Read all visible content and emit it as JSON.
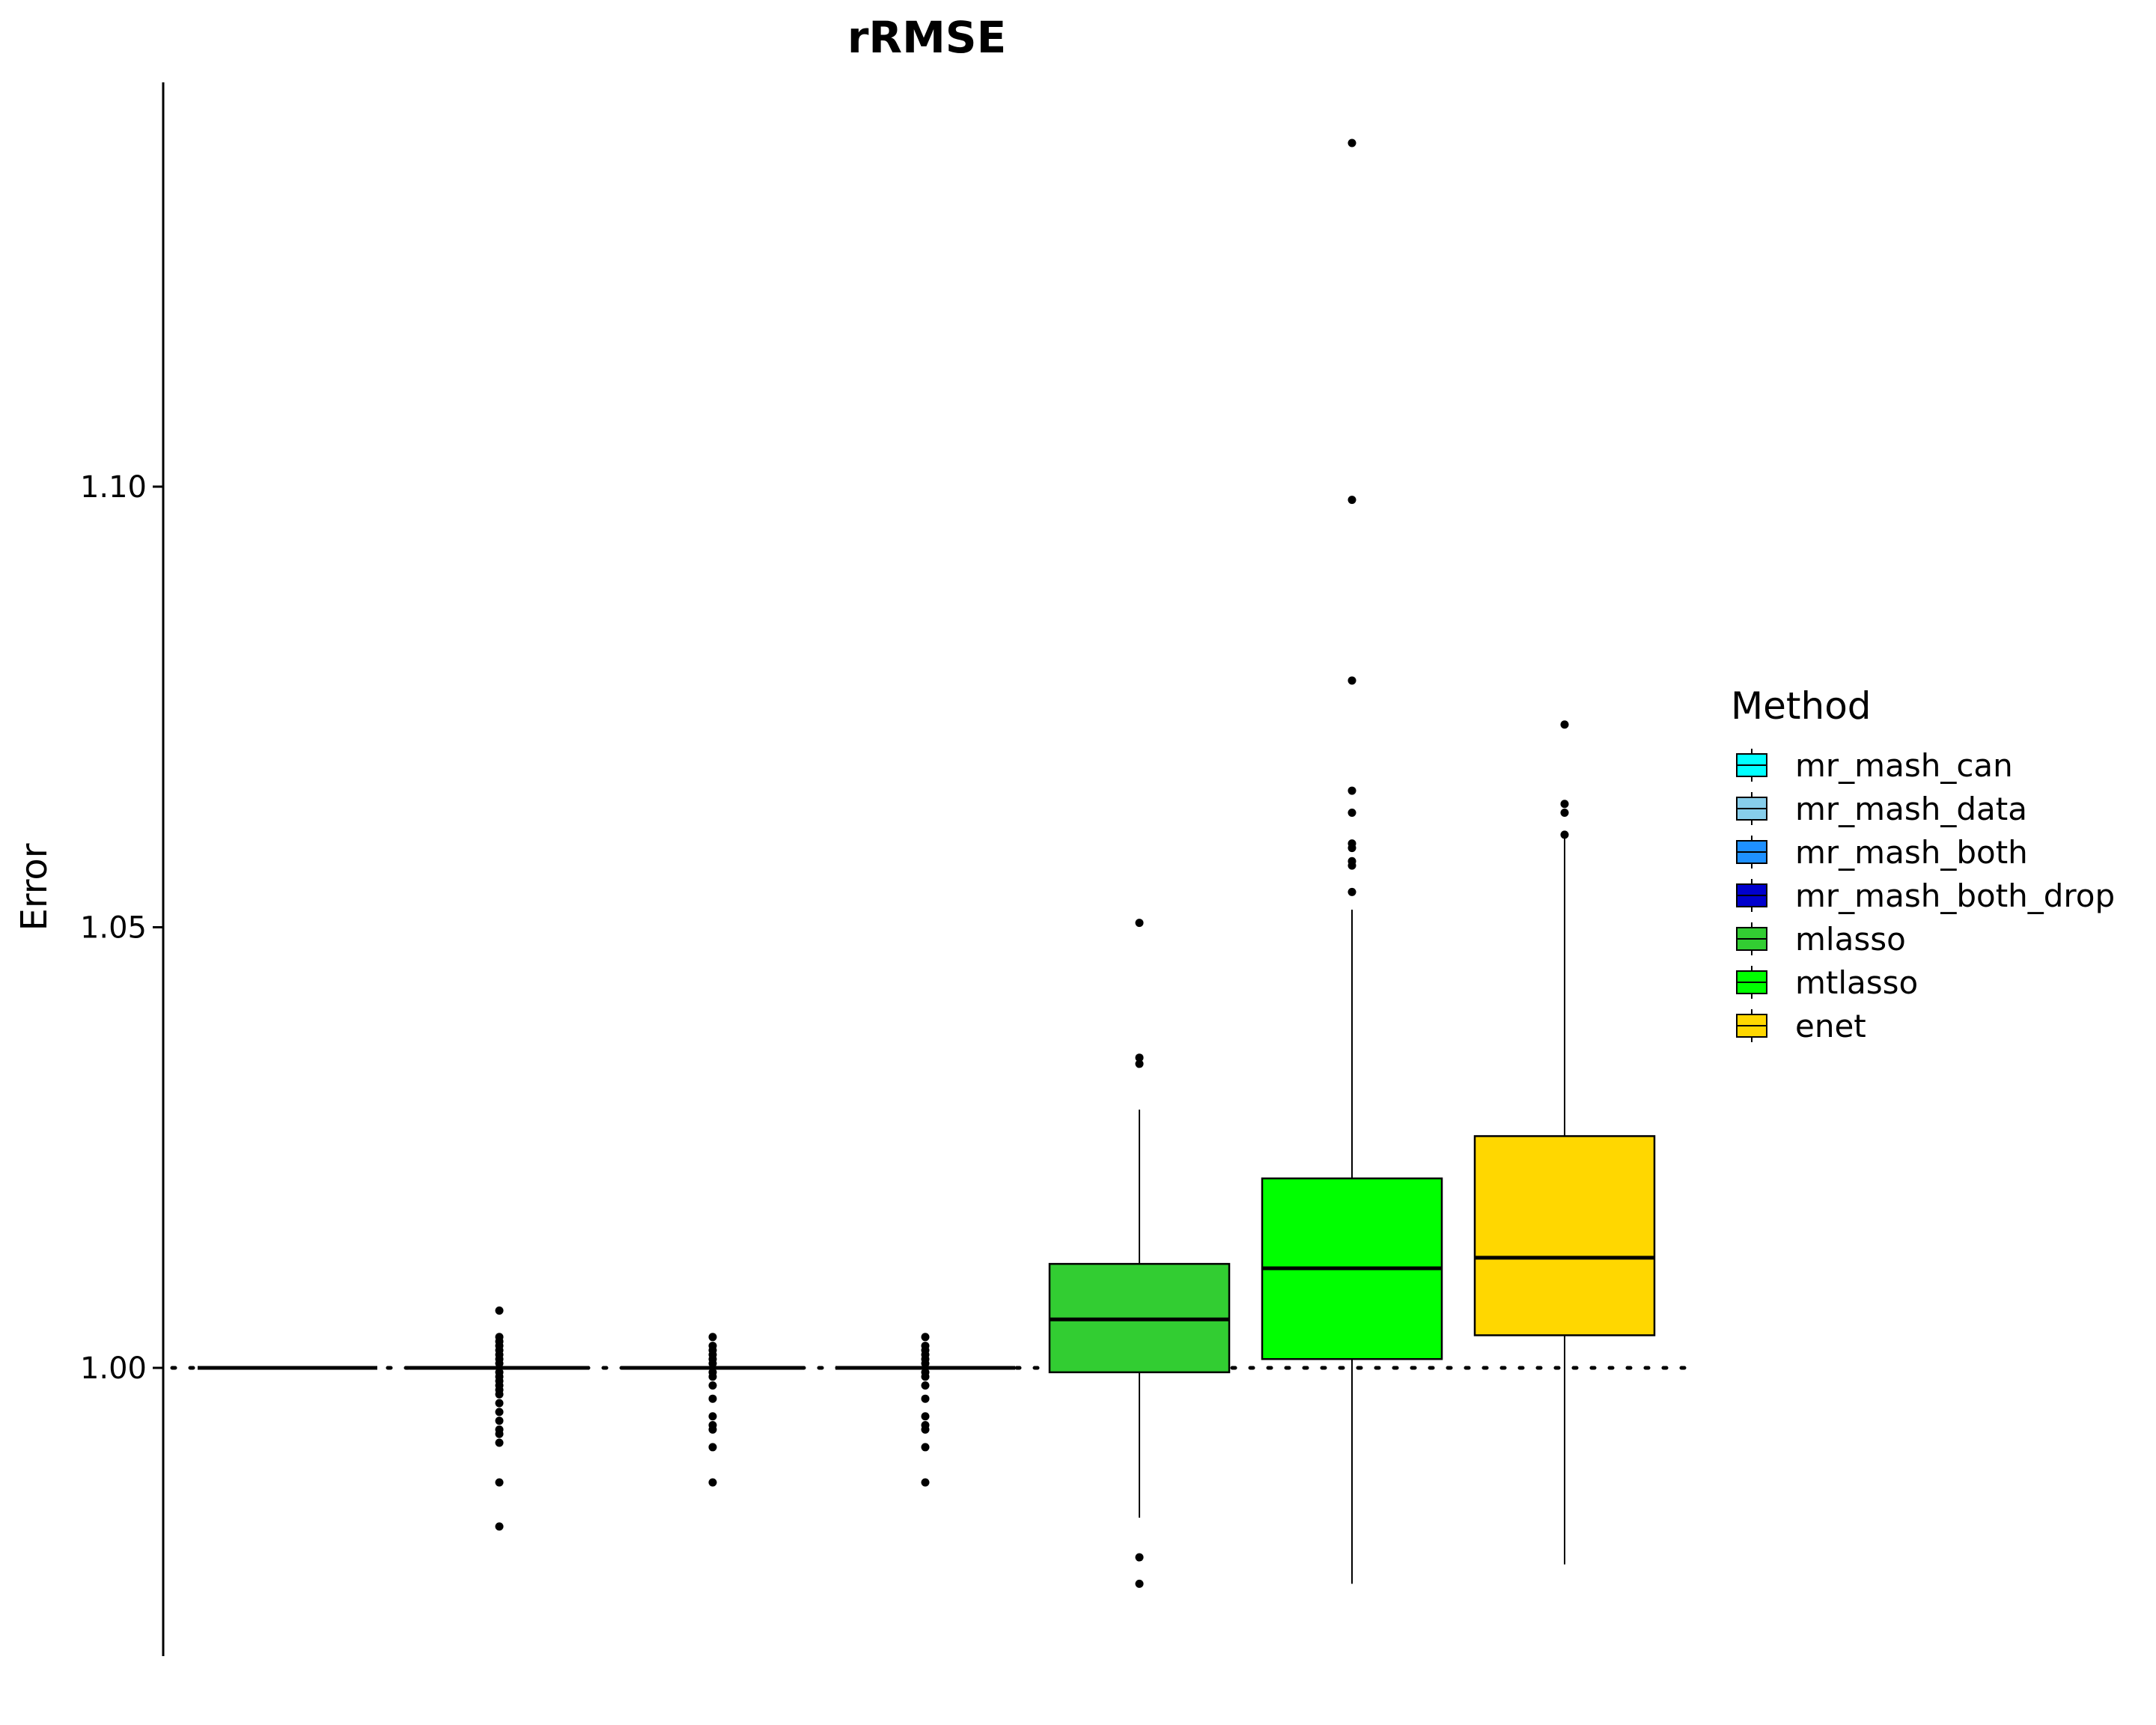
{
  "chart_data": {
    "type": "boxplot",
    "title": "rRMSE",
    "xlabel": "",
    "ylabel": "Error",
    "ylim": [
      0.967,
      1.13
    ],
    "yticks": [
      1.0,
      1.05,
      1.1
    ],
    "ytick_labels": [
      "1.00",
      "1.05",
      "1.10"
    ],
    "reference_line": 1.0,
    "grid": false,
    "legend_title": "Method",
    "legend_position": "right",
    "series": [
      {
        "name": "mr_mash_can",
        "color": "#00FFFF",
        "min": 1.0,
        "q1": 1.0,
        "median": 1.0,
        "q3": 1.0,
        "max": 1.0,
        "outliers": []
      },
      {
        "name": "mr_mash_data",
        "color": "#87CEEB",
        "min": 1.0,
        "q1": 1.0,
        "median": 1.0,
        "q3": 1.0,
        "max": 1.0,
        "outliers": [
          1.0065,
          1.0035,
          1.003,
          1.0025,
          1.002,
          1.0015,
          1.001,
          1.0005,
          0.9995,
          0.999,
          0.9985,
          0.998,
          0.9975,
          0.997,
          0.996,
          0.995,
          0.994,
          0.993,
          0.9925,
          0.9915,
          0.987,
          0.982
        ]
      },
      {
        "name": "mr_mash_both",
        "color": "#1E90FF",
        "min": 1.0,
        "q1": 1.0,
        "median": 1.0,
        "q3": 1.0,
        "max": 1.0,
        "outliers": [
          1.0035,
          1.0025,
          1.002,
          1.0015,
          1.001,
          1.0005,
          0.9995,
          0.999,
          0.998,
          0.9965,
          0.9945,
          0.9935,
          0.993,
          0.991,
          0.987
        ]
      },
      {
        "name": "mr_mash_both_drop",
        "color": "#0000CD",
        "min": 1.0,
        "q1": 1.0,
        "median": 1.0,
        "q3": 1.0,
        "max": 1.0,
        "outliers": [
          1.0035,
          1.0025,
          1.002,
          1.0015,
          1.001,
          1.0005,
          0.9995,
          0.999,
          0.998,
          0.9965,
          0.9945,
          0.9935,
          0.993,
          0.991,
          0.987
        ]
      },
      {
        "name": "mlasso",
        "color": "#32CD32",
        "min": 0.983,
        "q1": 0.9995,
        "median": 1.0055,
        "q3": 1.0118,
        "max": 1.0293,
        "outliers": [
          1.0505,
          1.0352,
          1.0345,
          0.9785,
          0.9755
        ]
      },
      {
        "name": "mtlasso",
        "color": "#00FF00",
        "min": 0.9755,
        "q1": 1.001,
        "median": 1.0113,
        "q3": 1.0215,
        "max": 1.052,
        "outliers": [
          1.139,
          1.0985,
          1.078,
          1.0655,
          1.063,
          1.0595,
          1.059,
          1.0575,
          1.057,
          1.054
        ]
      },
      {
        "name": "enet",
        "color": "#FFD700",
        "min": 0.9777,
        "q1": 1.0037,
        "median": 1.0125,
        "q3": 1.0263,
        "max": 1.0605,
        "outliers": [
          1.073,
          1.064,
          1.063,
          1.0605
        ]
      }
    ]
  }
}
